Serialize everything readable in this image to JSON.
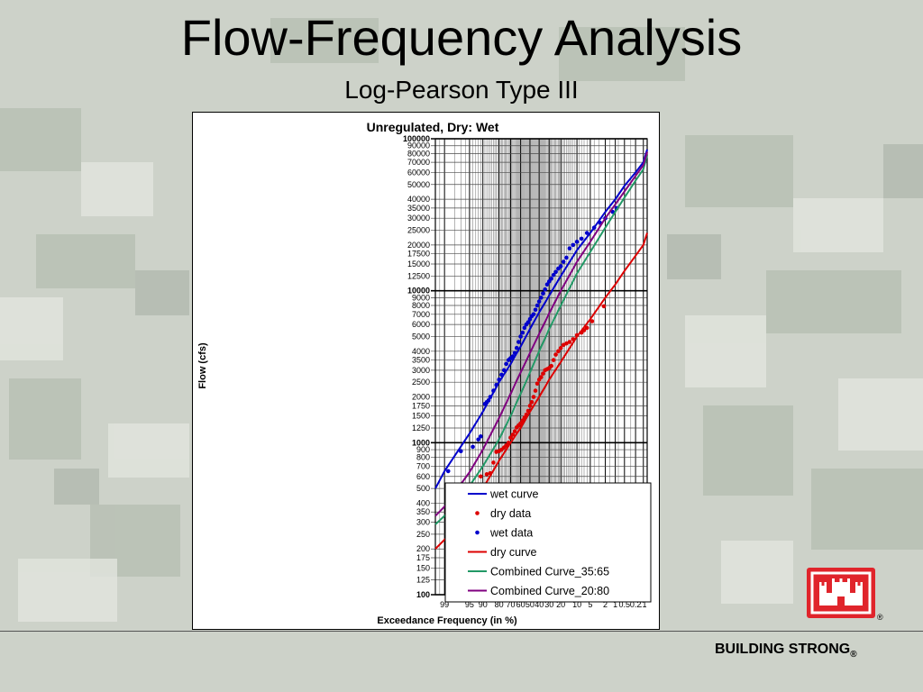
{
  "slide": {
    "title": "Flow-Frequency Analysis",
    "subtitle": "Log-Pearson Type III",
    "footer": "BUILDING STRONG",
    "footer_mark": "®",
    "logo_mark": "®"
  },
  "colors": {
    "wet": "#0000cc",
    "dry": "#dd0000",
    "combined_35_65": "#229966",
    "combined_20_80": "#800080",
    "logo_red": "#e0242b"
  },
  "chart_data": {
    "type": "line",
    "title": "Unregulated, Dry: Wet",
    "xlabel": "Exceedance Frequency (in %)",
    "ylabel": "Flow (cfs)",
    "x_scale": "normal-probability",
    "y_scale": "log",
    "xlim": [
      99.5,
      0.07
    ],
    "ylim": [
      100,
      100000
    ],
    "grid": true,
    "legend_position": "bottom-right",
    "x_ticks": [
      99,
      95,
      90,
      80,
      70,
      60,
      50,
      40,
      30,
      20,
      10,
      5,
      2,
      1,
      0.5,
      0.2,
      0.1
    ],
    "x_tick_labels": [
      "99",
      "95",
      "90",
      "80",
      "70",
      "60",
      "50",
      "40",
      "30",
      "20",
      "10",
      "5",
      "2",
      "1",
      "0.5",
      "0.2",
      ".1"
    ],
    "y_ticks": [
      100,
      125,
      150,
      175,
      200,
      250,
      300,
      350,
      400,
      500,
      600,
      700,
      800,
      900,
      1000,
      1250,
      1500,
      1750,
      2000,
      2500,
      3000,
      3500,
      4000,
      5000,
      6000,
      7000,
      8000,
      9000,
      10000,
      12500,
      15000,
      17500,
      20000,
      25000,
      30000,
      35000,
      40000,
      50000,
      60000,
      70000,
      80000,
      90000,
      100000
    ],
    "y_tick_labels": [
      "100",
      "125",
      "150",
      "175",
      "200",
      "250",
      "300",
      "350",
      "400",
      "500",
      "600",
      "700",
      "800",
      "900",
      "1000",
      "1250",
      "1500",
      "1750",
      "2000",
      "2500",
      "3000",
      "3500",
      "4000",
      "5000",
      "6000",
      "7000",
      "8000",
      "9000",
      "10000",
      "12500",
      "15000",
      "17500",
      "20000",
      "25000",
      "30000",
      "35000",
      "40000",
      "50000",
      "60000",
      "70000",
      "80000",
      "90000",
      "100000"
    ],
    "y_major_ticks": [
      100,
      1000,
      10000,
      100000
    ],
    "series": [
      {
        "name": "wet curve",
        "kind": "line",
        "color": "#0000cc",
        "points": [
          [
            99.5,
            500
          ],
          [
            99,
            650
          ],
          [
            95,
            1150
          ],
          [
            90,
            1600
          ],
          [
            80,
            2500
          ],
          [
            70,
            3300
          ],
          [
            60,
            4300
          ],
          [
            50,
            5600
          ],
          [
            40,
            7200
          ],
          [
            30,
            9300
          ],
          [
            20,
            12500
          ],
          [
            10,
            18500
          ],
          [
            5,
            24000
          ],
          [
            2,
            33000
          ],
          [
            1,
            40000
          ],
          [
            0.5,
            49000
          ],
          [
            0.2,
            60000
          ],
          [
            0.1,
            70000
          ],
          [
            0.07,
            85000
          ]
        ]
      },
      {
        "name": "dry data",
        "kind": "scatter",
        "color": "#dd0000",
        "points": [
          [
            97,
            370
          ],
          [
            93,
            530
          ],
          [
            91,
            600
          ],
          [
            88,
            620
          ],
          [
            86,
            630
          ],
          [
            84,
            740
          ],
          [
            82,
            870
          ],
          [
            80,
            880
          ],
          [
            78,
            900
          ],
          [
            76,
            930
          ],
          [
            74,
            960
          ],
          [
            72,
            1000
          ],
          [
            70,
            1080
          ],
          [
            68,
            1130
          ],
          [
            66,
            1190
          ],
          [
            64,
            1260
          ],
          [
            62,
            1300
          ],
          [
            60,
            1340
          ],
          [
            58,
            1400
          ],
          [
            56,
            1460
          ],
          [
            54,
            1530
          ],
          [
            52,
            1620
          ],
          [
            50,
            1750
          ],
          [
            48,
            1850
          ],
          [
            46,
            2000
          ],
          [
            44,
            2200
          ],
          [
            42,
            2450
          ],
          [
            40,
            2600
          ],
          [
            38,
            2700
          ],
          [
            36,
            2850
          ],
          [
            34,
            3000
          ],
          [
            32,
            3050
          ],
          [
            30,
            3100
          ],
          [
            28,
            3200
          ],
          [
            26,
            3500
          ],
          [
            24,
            3800
          ],
          [
            22,
            4000
          ],
          [
            20,
            4200
          ],
          [
            18,
            4400
          ],
          [
            16,
            4500
          ],
          [
            14,
            4600
          ],
          [
            12,
            4800
          ],
          [
            10,
            5100
          ],
          [
            8,
            5300
          ],
          [
            7,
            5500
          ],
          [
            6,
            5700
          ],
          [
            4.5,
            6300
          ],
          [
            2.2,
            7900
          ]
        ]
      },
      {
        "name": "wet data",
        "kind": "scatter",
        "color": "#0000cc",
        "points": [
          [
            98.7,
            650
          ],
          [
            97,
            880
          ],
          [
            94,
            940
          ],
          [
            92,
            1050
          ],
          [
            91,
            1100
          ],
          [
            89,
            1800
          ],
          [
            88,
            1850
          ],
          [
            87,
            1900
          ],
          [
            86,
            2000
          ],
          [
            84,
            2200
          ],
          [
            82,
            2400
          ],
          [
            80,
            2600
          ],
          [
            78,
            2800
          ],
          [
            76,
            3000
          ],
          [
            74,
            3300
          ],
          [
            72,
            3500
          ],
          [
            70,
            3600
          ],
          [
            68,
            3700
          ],
          [
            66,
            3900
          ],
          [
            64,
            4200
          ],
          [
            62,
            4600
          ],
          [
            60,
            5000
          ],
          [
            58,
            5300
          ],
          [
            56,
            5700
          ],
          [
            54,
            6000
          ],
          [
            52,
            6200
          ],
          [
            50,
            6500
          ],
          [
            48,
            6800
          ],
          [
            46,
            7000
          ],
          [
            44,
            7500
          ],
          [
            42,
            8000
          ],
          [
            40,
            8500
          ],
          [
            38,
            9000
          ],
          [
            36,
            9600
          ],
          [
            34,
            10200
          ],
          [
            32,
            11000
          ],
          [
            30,
            11500
          ],
          [
            28,
            12000
          ],
          [
            26,
            12700
          ],
          [
            24,
            13300
          ],
          [
            22,
            14000
          ],
          [
            20,
            14500
          ],
          [
            18,
            15500
          ],
          [
            16,
            16500
          ],
          [
            14,
            19000
          ],
          [
            12,
            20000
          ],
          [
            10,
            21000
          ],
          [
            8,
            22000
          ],
          [
            6,
            24000
          ],
          [
            4,
            26000
          ],
          [
            2.8,
            28000
          ],
          [
            2,
            30000
          ],
          [
            1.2,
            33000
          ],
          [
            0.9,
            35000
          ]
        ]
      },
      {
        "name": "dry curve",
        "kind": "line",
        "color": "#dd0000",
        "points": [
          [
            99.5,
            200
          ],
          [
            99,
            230
          ],
          [
            95,
            380
          ],
          [
            90,
            500
          ],
          [
            80,
            760
          ],
          [
            70,
            1000
          ],
          [
            60,
            1250
          ],
          [
            50,
            1600
          ],
          [
            40,
            2000
          ],
          [
            30,
            2600
          ],
          [
            20,
            3400
          ],
          [
            10,
            5000
          ],
          [
            5,
            6500
          ],
          [
            2,
            9000
          ],
          [
            1,
            11000
          ],
          [
            0.5,
            13500
          ],
          [
            0.2,
            17000
          ],
          [
            0.1,
            20000
          ],
          [
            0.07,
            24000
          ]
        ]
      },
      {
        "name": "Combined Curve_35:65",
        "kind": "line",
        "color": "#229966",
        "points": [
          [
            99.5,
            290
          ],
          [
            99,
            330
          ],
          [
            95,
            520
          ],
          [
            90,
            700
          ],
          [
            80,
            1050
          ],
          [
            70,
            1500
          ],
          [
            60,
            2100
          ],
          [
            50,
            2900
          ],
          [
            40,
            4000
          ],
          [
            30,
            5600
          ],
          [
            20,
            8000
          ],
          [
            10,
            13000
          ],
          [
            5,
            18000
          ],
          [
            2,
            26000
          ],
          [
            1,
            33000
          ],
          [
            0.5,
            41000
          ],
          [
            0.2,
            53000
          ],
          [
            0.1,
            63000
          ],
          [
            0.07,
            78000
          ]
        ]
      },
      {
        "name": "Combined Curve_20:80",
        "kind": "line",
        "color": "#800080",
        "points": [
          [
            99.5,
            330
          ],
          [
            99,
            380
          ],
          [
            95,
            640
          ],
          [
            90,
            900
          ],
          [
            80,
            1450
          ],
          [
            70,
            2100
          ],
          [
            60,
            2900
          ],
          [
            50,
            3900
          ],
          [
            40,
            5200
          ],
          [
            30,
            7100
          ],
          [
            20,
            10000
          ],
          [
            10,
            15500
          ],
          [
            5,
            21000
          ],
          [
            2,
            30000
          ],
          [
            1,
            37000
          ],
          [
            0.5,
            45000
          ],
          [
            0.2,
            57000
          ],
          [
            0.1,
            67000
          ],
          [
            0.07,
            82000
          ]
        ]
      }
    ],
    "legend": [
      {
        "label": "wet curve",
        "kind": "line",
        "color": "#0000cc"
      },
      {
        "label": "dry data",
        "kind": "marker",
        "color": "#dd0000"
      },
      {
        "label": "wet data",
        "kind": "marker",
        "color": "#0000cc"
      },
      {
        "label": "dry curve",
        "kind": "line",
        "color": "#dd0000"
      },
      {
        "label": "Combined Curve_35:65",
        "kind": "line",
        "color": "#229966"
      },
      {
        "label": "Combined Curve_20:80",
        "kind": "line",
        "color": "#800080"
      }
    ]
  }
}
